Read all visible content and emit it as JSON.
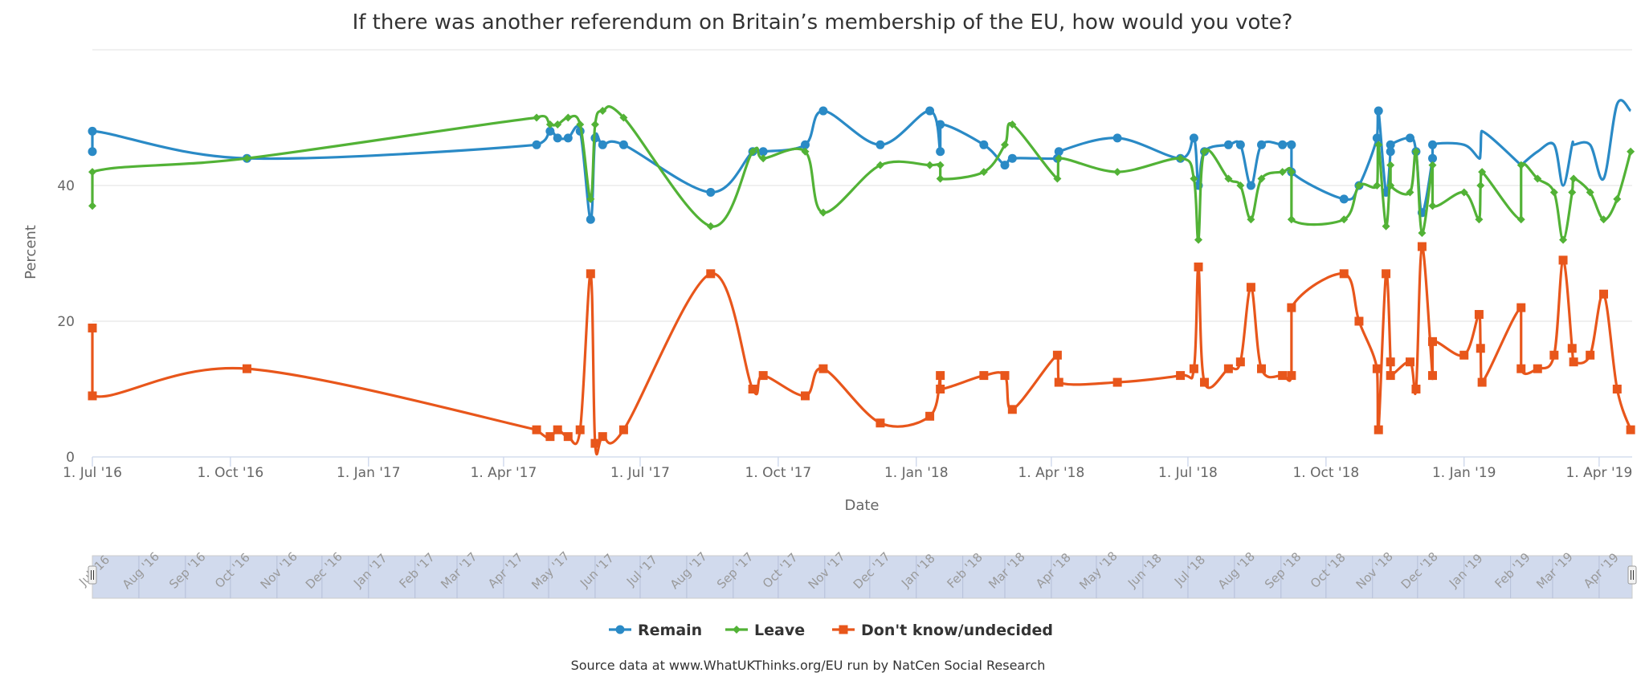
{
  "chart_data": {
    "type": "line",
    "subtype": "spline",
    "title": "If there was another referendum on Britain’s membership of the EU, how would you vote?",
    "xlabel": "Date",
    "ylabel": "Percent",
    "xlim": [
      "2016-07-01",
      "2019-04-23"
    ],
    "ylim": [
      0,
      60
    ],
    "yticks": [
      0,
      20,
      40
    ],
    "grid": true,
    "legend_position": "bottom",
    "x_tick_labels": [
      {
        "date": "2016-07-01",
        "label": "1. Jul '16"
      },
      {
        "date": "2016-10-01",
        "label": "1. Oct '16"
      },
      {
        "date": "2017-01-01",
        "label": "1. Jan '17"
      },
      {
        "date": "2017-04-01",
        "label": "1. Apr '17"
      },
      {
        "date": "2017-07-01",
        "label": "1. Jul '17"
      },
      {
        "date": "2017-10-01",
        "label": "1. Oct '17"
      },
      {
        "date": "2018-01-01",
        "label": "1. Jan '18"
      },
      {
        "date": "2018-04-01",
        "label": "1. Apr '18"
      },
      {
        "date": "2018-07-01",
        "label": "1. Jul '18"
      },
      {
        "date": "2018-10-01",
        "label": "1. Oct '18"
      },
      {
        "date": "2019-01-01",
        "label": "1. Jan '19"
      },
      {
        "date": "2019-04-01",
        "label": "1. Apr '19"
      }
    ],
    "navigator_labels": [
      "Jul '16",
      "Aug '16",
      "Sep '16",
      "Oct '16",
      "Nov '16",
      "Dec '16",
      "Jan '17",
      "Feb '17",
      "Mar '17",
      "Apr '17",
      "May '17",
      "Jun '17",
      "Jul '17",
      "Aug '17",
      "Sep '17",
      "Oct '17",
      "Nov '17",
      "Dec '17",
      "Jan '18",
      "Feb '18",
      "Mar '18",
      "Apr '18",
      "May '18",
      "Jun '18",
      "Jul '18",
      "Aug '18",
      "Sep '18",
      "Oct '18",
      "Nov '18",
      "Dec '18",
      "Jan '19",
      "Feb '19",
      "Mar '19",
      "Apr '19"
    ],
    "dates": [
      "2016-07-01",
      "2016-07-01",
      "2016-10-12",
      "2017-04-23",
      "2017-05-02",
      "2017-05-07",
      "2017-05-14",
      "2017-05-22",
      "2017-05-29",
      "2017-06-01",
      "2017-06-06",
      "2017-06-20",
      "2017-08-17",
      "2017-09-14",
      "2017-09-21",
      "2017-10-19",
      "2017-10-31",
      "2017-12-08",
      "2018-01-10",
      "2018-01-17",
      "2018-01-17",
      "2018-02-15",
      "2018-03-01",
      "2018-03-06",
      "2018-04-05",
      "2018-04-06",
      "2018-05-15",
      "2018-06-26",
      "2018-07-05",
      "2018-07-08",
      "2018-07-12",
      "2018-07-28",
      "2018-08-05",
      "2018-08-12",
      "2018-08-19",
      "2018-09-02",
      "2018-09-08",
      "2018-09-08",
      "2018-10-13",
      "2018-10-23",
      "2018-11-04",
      "2018-11-05",
      "2018-11-10",
      "2018-11-13",
      "2018-11-13",
      "2018-11-26",
      "2018-11-30",
      "2018-12-04",
      "2018-12-11",
      "2018-12-11",
      "2019-01-01",
      "2019-01-11",
      "2019-01-12",
      "2019-01-13",
      "2019-02-08",
      "2019-02-08",
      "2019-02-19",
      "2019-03-02",
      "2019-03-08",
      "2019-03-14",
      "2019-03-15",
      "2019-03-26",
      "2019-04-04",
      "2019-04-13",
      "2019-04-22"
    ],
    "series": [
      {
        "name": "Remain",
        "color": "#2a8ac6",
        "marker": "circle",
        "values": [
          45,
          48,
          44,
          46,
          48,
          47,
          47,
          48,
          35,
          47,
          46,
          46,
          39,
          45,
          45,
          46,
          51,
          46,
          51,
          45,
          49,
          46,
          43,
          44,
          44,
          45,
          47,
          44,
          47,
          40,
          45,
          46,
          46,
          40,
          46,
          46,
          46,
          42,
          38,
          40,
          47,
          51,
          39,
          45,
          46,
          47,
          45,
          36,
          44,
          46,
          46,
          44,
          45,
          48,
          43,
          43,
          45,
          46,
          40,
          46,
          46,
          46,
          41,
          52,
          51
        ]
      },
      {
        "name": "Leave",
        "color": "#52b236",
        "marker": "diamond",
        "values": [
          37,
          42,
          44,
          50,
          49,
          49,
          50,
          49,
          38,
          49,
          51,
          50,
          34,
          45,
          44,
          45,
          36,
          43,
          43,
          43,
          41,
          42,
          46,
          49,
          41,
          44,
          42,
          44,
          41,
          32,
          45,
          41,
          40,
          35,
          41,
          42,
          42,
          35,
          35,
          40,
          40,
          46,
          34,
          43,
          40,
          39,
          45,
          33,
          43,
          37,
          39,
          35,
          40,
          42,
          35,
          43,
          41,
          39,
          32,
          39,
          41,
          39,
          35,
          38,
          45
        ]
      },
      {
        "name": "Don't know/undecided",
        "color": "#e8561b",
        "marker": "square",
        "values": [
          19,
          9,
          13,
          4,
          3,
          4,
          3,
          4,
          27,
          2,
          3,
          4,
          27,
          10,
          12,
          9,
          13,
          5,
          6,
          12,
          10,
          12,
          12,
          7,
          15,
          11,
          11,
          12,
          13,
          28,
          11,
          13,
          14,
          25,
          13,
          12,
          12,
          22,
          27,
          20,
          13,
          4,
          27,
          14,
          12,
          14,
          10,
          31,
          12,
          17,
          15,
          21,
          16,
          11,
          22,
          13,
          13,
          15,
          29,
          16,
          14,
          15,
          24,
          10,
          4
        ]
      }
    ],
    "source": "Source data at www.WhatUKThinks.org/EU run by NatCen Social Research"
  }
}
